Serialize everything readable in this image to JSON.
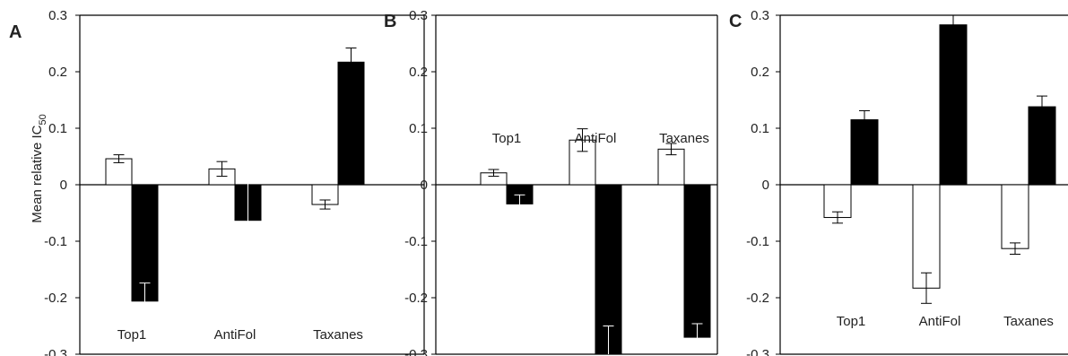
{
  "figure": {
    "ylabel": "Mean relative IC",
    "ylabel_sub": "50"
  },
  "chart_data": [
    {
      "type": "bar",
      "panel": "A",
      "categories": [
        "Top1",
        "AntiFol",
        "Taxanes"
      ],
      "category_label_position": "bottom",
      "ylim": [
        -0.3,
        0.3
      ],
      "yticks": [
        "0.3",
        "0.2",
        "0.1",
        "0",
        "-0.1",
        "-0.2",
        "-0.3"
      ],
      "grid": false,
      "series": [
        {
          "fill": "#ffffff",
          "values": [
            0.046,
            0.028,
            -0.035
          ],
          "errors": [
            0.007,
            0.013,
            0.008
          ]
        },
        {
          "fill": "#000000",
          "values": [
            -0.206,
            -0.063,
            0.217
          ],
          "errors": [
            0.032,
            0.078,
            0.025
          ]
        }
      ]
    },
    {
      "type": "bar",
      "panel": "B",
      "categories": [
        "Top1",
        "AntiFol",
        "Taxanes"
      ],
      "category_label_position": "top",
      "ylim": [
        -0.3,
        0.3
      ],
      "yticks": [
        "0.3",
        "0.2",
        "0.1",
        "0",
        "-0.1",
        "-0.2",
        "-0.3"
      ],
      "grid": false,
      "series": [
        {
          "fill": "#ffffff",
          "values": [
            0.021,
            0.079,
            0.063
          ],
          "errors": [
            0.006,
            0.02,
            0.01
          ]
        },
        {
          "fill": "#000000",
          "values": [
            -0.034,
            -0.3,
            -0.27
          ],
          "errors": [
            0.016,
            0.05,
            0.024
          ]
        }
      ]
    },
    {
      "type": "bar",
      "panel": "C",
      "categories": [
        "Top1",
        "AntiFol",
        "Taxanes"
      ],
      "category_label_position": "bottom",
      "ylim": [
        -0.3,
        0.3
      ],
      "yticks": [
        "0.3",
        "0.2",
        "0.1",
        "0",
        "-0.1",
        "-0.2",
        "-0.3"
      ],
      "grid": false,
      "series": [
        {
          "fill": "#ffffff",
          "values": [
            -0.058,
            -0.183,
            -0.113
          ],
          "errors": [
            0.01,
            0.027,
            0.01
          ]
        },
        {
          "fill": "#000000",
          "values": [
            0.115,
            0.283,
            0.138
          ],
          "errors": [
            0.016,
            0.048,
            0.019
          ]
        }
      ]
    }
  ]
}
